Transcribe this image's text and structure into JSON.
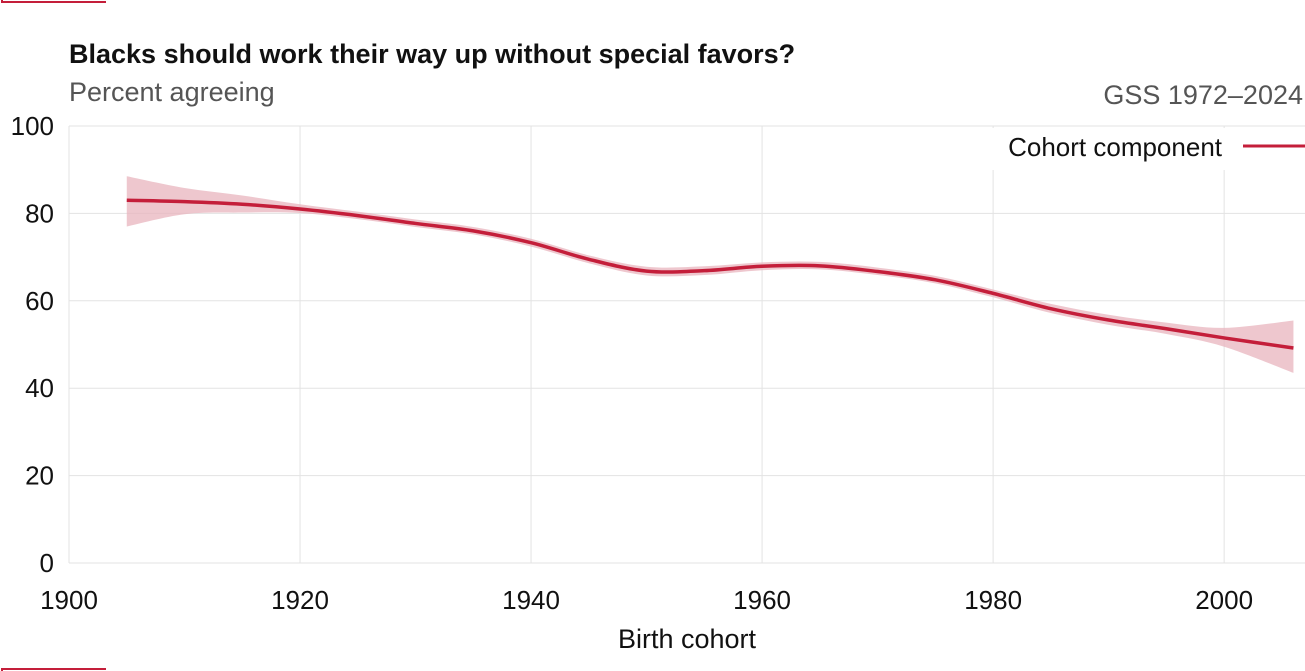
{
  "chart_data": {
    "type": "line",
    "title": "Blacks should work their way up without special favors?",
    "subtitle": "Percent agreeing",
    "source": "GSS 1972–2024",
    "xlabel": "Birth cohort",
    "ylabel": "",
    "xlim": [
      1900,
      2007
    ],
    "ylim": [
      0,
      100
    ],
    "xticks": [
      1900,
      1920,
      1940,
      1960,
      1980,
      2000
    ],
    "yticks": [
      0,
      20,
      40,
      60,
      80,
      100
    ],
    "grid": true,
    "legend_position": "top-right",
    "colors": {
      "line": "#c41e3a",
      "band": "#e8b4be",
      "corner": "#c41e3a"
    },
    "series": [
      {
        "name": "Cohort component",
        "x": [
          1905,
          1910,
          1915,
          1920,
          1925,
          1930,
          1935,
          1940,
          1945,
          1950,
          1955,
          1960,
          1965,
          1970,
          1975,
          1980,
          1985,
          1990,
          1995,
          2000,
          2006
        ],
        "values": [
          83.0,
          82.7,
          82.1,
          81.0,
          79.5,
          77.7,
          76.0,
          73.3,
          69.5,
          66.8,
          66.9,
          67.9,
          68.0,
          66.7,
          64.8,
          61.7,
          58.2,
          55.6,
          53.6,
          51.5,
          49.2
        ],
        "lower": [
          77.0,
          79.8,
          80.2,
          80.1,
          78.7,
          76.9,
          75.2,
          72.4,
          68.6,
          65.8,
          65.9,
          67.0,
          67.2,
          65.9,
          64.0,
          60.8,
          57.2,
          54.5,
          52.4,
          49.5,
          43.5
        ],
        "upper": [
          88.5,
          85.8,
          84.1,
          82.1,
          80.4,
          78.6,
          76.9,
          74.2,
          70.4,
          67.8,
          67.9,
          68.8,
          68.9,
          67.6,
          65.7,
          62.6,
          59.3,
          56.8,
          55.0,
          53.8,
          55.5
        ]
      }
    ]
  }
}
